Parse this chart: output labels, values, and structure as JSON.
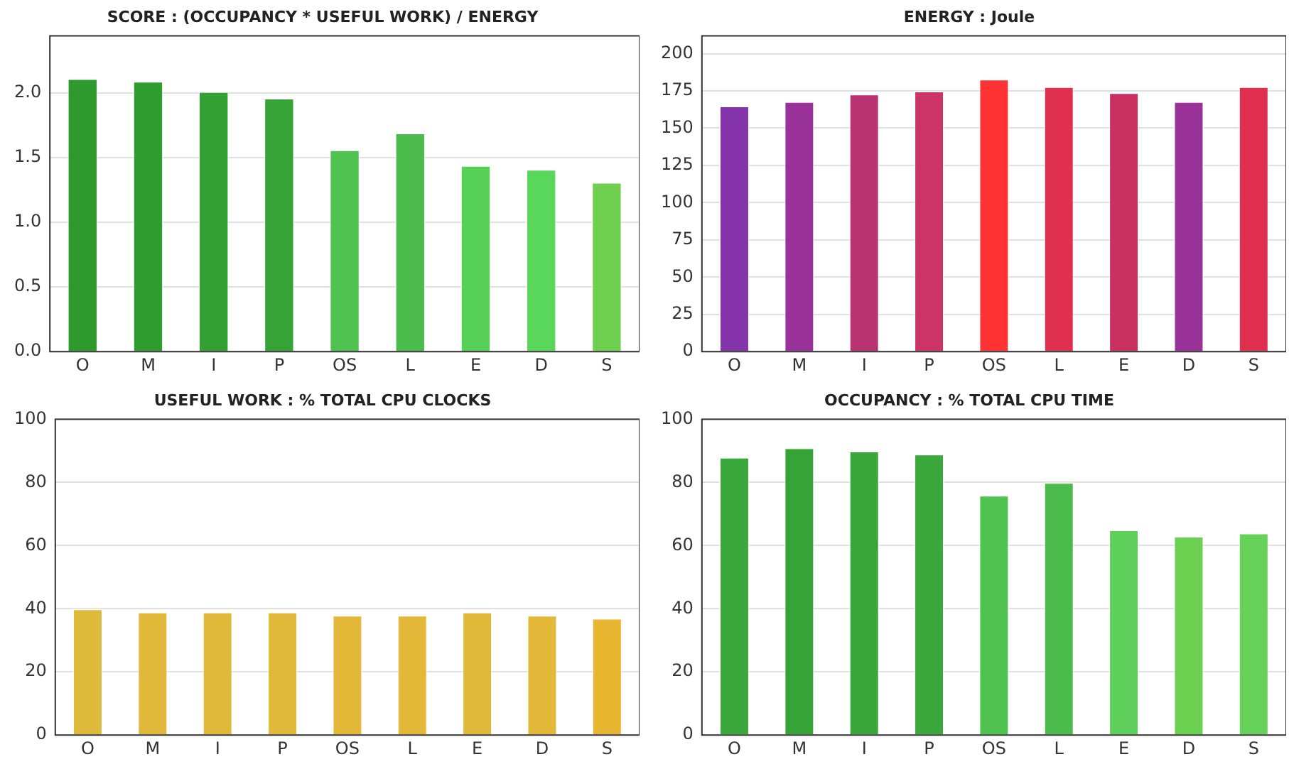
{
  "chart_data": [
    {
      "type": "bar",
      "title": "SCORE : (OCCUPANCY * USEFUL WORK) / ENERGY",
      "categories": [
        "O",
        "M",
        "I",
        "P",
        "OS",
        "L",
        "E",
        "D",
        "S"
      ],
      "values": [
        2.11,
        2.09,
        2.01,
        1.96,
        1.56,
        1.69,
        1.44,
        1.41,
        1.31
      ],
      "colors": [
        "#2e9a2e",
        "#2f9c2f",
        "#33a033",
        "#35a335",
        "#50c250",
        "#4bbb4b",
        "#57d057",
        "#58d75a",
        "#6fd050"
      ],
      "ylim": [
        0,
        2.44
      ],
      "yticks": [
        {
          "value": 0,
          "label": "0.0"
        },
        {
          "value": 0.5,
          "label": "0.5"
        },
        {
          "value": 1,
          "label": "1.0"
        },
        {
          "value": 1.5,
          "label": "1.5"
        },
        {
          "value": 2,
          "label": "2.0"
        }
      ],
      "grid": "y"
    },
    {
      "type": "bar",
      "title": "ENERGY : Joule",
      "categories": [
        "O",
        "M",
        "I",
        "P",
        "OS",
        "L",
        "E",
        "D",
        "S"
      ],
      "values": [
        165,
        168,
        173,
        175,
        183,
        178,
        174,
        168,
        178
      ],
      "colors": [
        "#8533aa",
        "#9a3399",
        "#b83370",
        "#cc3366",
        "#ff3333",
        "#e03050",
        "#c83060",
        "#9a3399",
        "#e03050"
      ],
      "ylim": [
        0,
        212
      ],
      "yticks": [
        0,
        25,
        50,
        75,
        100,
        125,
        150,
        175,
        200
      ],
      "grid": "y"
    },
    {
      "type": "bar",
      "title": "USEFUL WORK : % TOTAL CPU CLOCKS",
      "categories": [
        "O",
        "M",
        "I",
        "P",
        "OS",
        "L",
        "E",
        "D",
        "S"
      ],
      "values": [
        40,
        39,
        39,
        39,
        38,
        38,
        39,
        38,
        37
      ],
      "colors": [
        "#debb3a",
        "#e0b93a",
        "#e0b93a",
        "#e0b93a",
        "#e4b838",
        "#e4b838",
        "#e0b93a",
        "#e4b838",
        "#e8b530"
      ],
      "ylim": [
        0,
        100
      ],
      "yticks": [
        0,
        20,
        40,
        60,
        80,
        100
      ],
      "grid": "y"
    },
    {
      "type": "bar",
      "title": "OCCUPANCY : % TOTAL CPU TIME",
      "categories": [
        "O",
        "M",
        "I",
        "P",
        "OS",
        "L",
        "E",
        "D",
        "S"
      ],
      "values": [
        88,
        91,
        90,
        89,
        76,
        80,
        65,
        63,
        64
      ],
      "colors": [
        "#3aa83a",
        "#35a335",
        "#38a638",
        "#3aa83a",
        "#50c250",
        "#4bbb4b",
        "#5ecf5a",
        "#6bcf50",
        "#66d25a"
      ],
      "ylim": [
        0,
        100
      ],
      "yticks": [
        0,
        20,
        40,
        60,
        80,
        100
      ],
      "grid": "y"
    }
  ]
}
